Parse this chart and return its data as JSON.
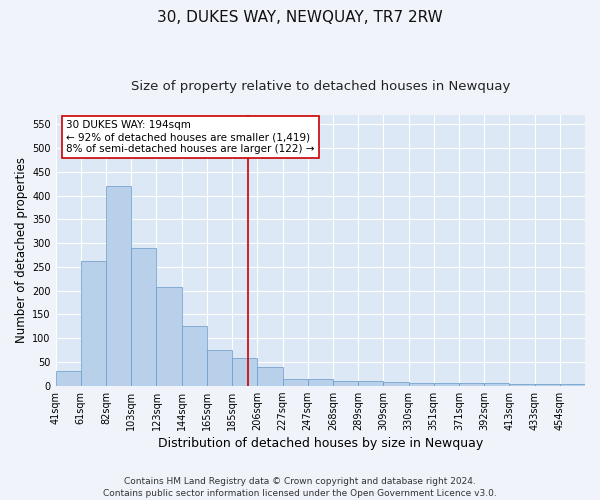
{
  "title": "30, DUKES WAY, NEWQUAY, TR7 2RW",
  "subtitle": "Size of property relative to detached houses in Newquay",
  "xlabel": "Distribution of detached houses by size in Newquay",
  "ylabel": "Number of detached properties",
  "bar_labels": [
    "41sqm",
    "61sqm",
    "82sqm",
    "103sqm",
    "123sqm",
    "144sqm",
    "165sqm",
    "185sqm",
    "206sqm",
    "227sqm",
    "247sqm",
    "268sqm",
    "289sqm",
    "309sqm",
    "330sqm",
    "351sqm",
    "371sqm",
    "392sqm",
    "413sqm",
    "433sqm",
    "454sqm"
  ],
  "bar_values": [
    30,
    263,
    420,
    289,
    207,
    125,
    75,
    58,
    40,
    15,
    15,
    9,
    9,
    7,
    5,
    5,
    6,
    5,
    3,
    4,
    4
  ],
  "bar_color": "#b8d0ea",
  "bar_edge_color": "#6899c8",
  "background_color": "#dce8f5",
  "grid_color": "#ffffff",
  "fig_bg_color": "#f0f4fa",
  "ylim": [
    0,
    570
  ],
  "yticks": [
    0,
    50,
    100,
    150,
    200,
    250,
    300,
    350,
    400,
    450,
    500,
    550
  ],
  "vline_x": 7.65,
  "vline_color": "#cc0000",
  "annotation_text": "30 DUKES WAY: 194sqm\n← 92% of detached houses are smaller (1,419)\n8% of semi-detached houses are larger (122) →",
  "annotation_box_color": "#ffffff",
  "annotation_border_color": "#cc0000",
  "footer_text": "Contains HM Land Registry data © Crown copyright and database right 2024.\nContains public sector information licensed under the Open Government Licence v3.0.",
  "title_fontsize": 11,
  "subtitle_fontsize": 9.5,
  "xlabel_fontsize": 9,
  "ylabel_fontsize": 8.5,
  "tick_fontsize": 7,
  "annotation_fontsize": 7.5,
  "footer_fontsize": 6.5
}
